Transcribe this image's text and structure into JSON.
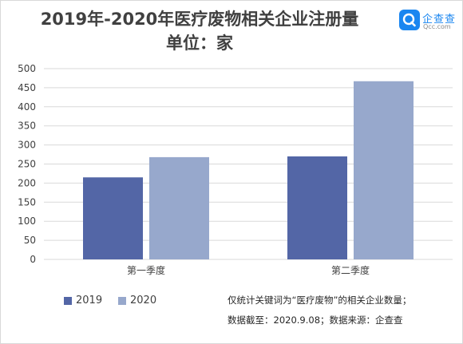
{
  "header": {
    "title_line1": "2019年-2020年医疗废物相关企业注册量",
    "title_line2": "单位：家"
  },
  "logo": {
    "name": "企查查",
    "domain": "Qcc.com",
    "color": "#1a86f0"
  },
  "chart_data": {
    "type": "bar",
    "categories": [
      "第一季度",
      "第二季度"
    ],
    "series": [
      {
        "name": "2019",
        "values": [
          215,
          270
        ],
        "color": "#5366a6"
      },
      {
        "name": "2020",
        "values": [
          268,
          467
        ],
        "color": "#97a8cc"
      }
    ],
    "yticks": [
      "0",
      "50",
      "100",
      "150",
      "200",
      "250",
      "300",
      "350",
      "400",
      "450",
      "500"
    ],
    "ylim": [
      0,
      500
    ],
    "grid": true,
    "legend_position": "bottom-left"
  },
  "notes": {
    "line1": "仅统计关键词为“医疗废物”的相关企业数量；",
    "line2": "数据截至：2020.9.08；数据来源：企查查"
  }
}
